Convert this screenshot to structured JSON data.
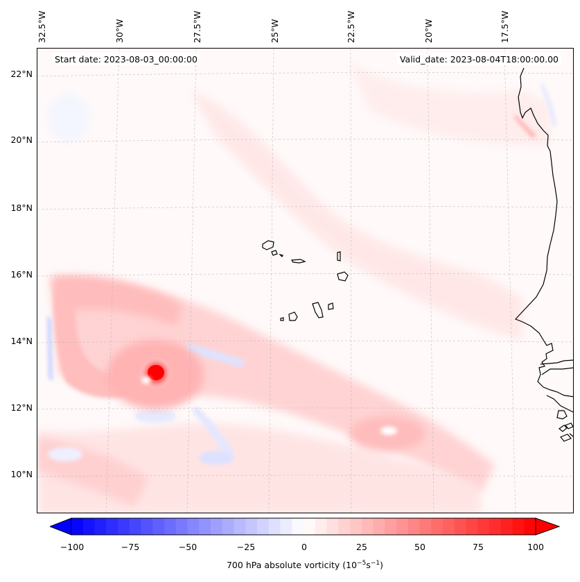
{
  "map": {
    "start_date": "Start date: 2023-08-03_00:00:00",
    "valid_date": "Valid_date: 2023-08-04T18:00:00.00",
    "lon_labels": [
      "32.5°W",
      "30°W",
      "27.5°W",
      "25°W",
      "22.5°W",
      "20°W",
      "17.5°W"
    ],
    "lat_labels": [
      "22°N",
      "20°N",
      "18°N",
      "16°N",
      "14°N",
      "12°N",
      "10°N"
    ],
    "field": "700 hPa absolute vorticity",
    "features": {
      "vortex_center": {
        "lat": 13.0,
        "lon": -29.3,
        "value": 100
      },
      "islands": "Cape Verde",
      "coast": "West African coast (Senegal, Gambia, Guinea-Bissau)"
    }
  },
  "colorbar": {
    "label_prefix": "700 hPa absolute vorticity (10",
    "label_exp1": "−5",
    "label_mid": "s",
    "label_exp2": "−1",
    "label_suffix": ")",
    "min": -100,
    "max": 100,
    "ticks": [
      "−100",
      "−75",
      "−50",
      "−25",
      "0",
      "25",
      "50",
      "75",
      "100"
    ],
    "colormap": "bwr",
    "low_color": "#0000ff",
    "mid_color": "#ffffff",
    "high_color": "#ff0000"
  }
}
